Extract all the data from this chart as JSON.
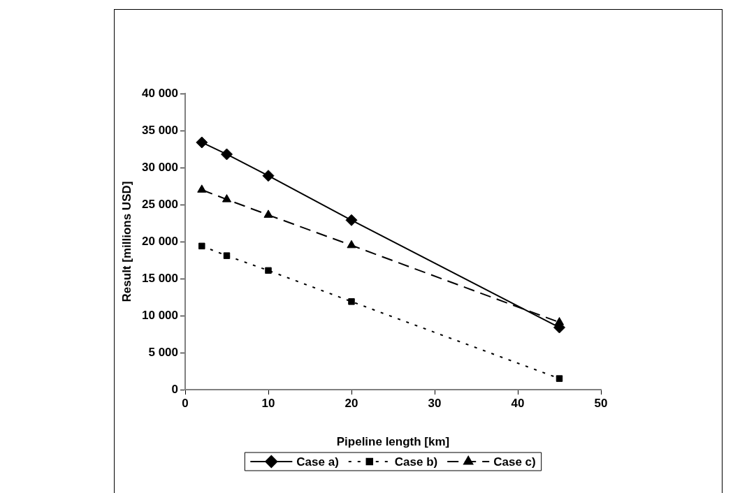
{
  "chart_data": {
    "type": "line",
    "xlabel": "Pipeline length [km]",
    "ylabel": "Result [millions USD]",
    "x": [
      2,
      5,
      10,
      20,
      45
    ],
    "series": [
      {
        "name": "Case a)",
        "color": "#000000",
        "marker": "diamond",
        "line_style": "solid",
        "values": [
          33400,
          31800,
          28900,
          22900,
          8400
        ]
      },
      {
        "name": "Case b)",
        "color": "#000000",
        "marker": "square",
        "line_style": "dotted",
        "values": [
          19400,
          18100,
          16100,
          11900,
          1500
        ]
      },
      {
        "name": "Case c)",
        "color": "#000000",
        "marker": "triangle",
        "line_style": "dashed",
        "values": [
          27000,
          25700,
          23600,
          19500,
          9100
        ]
      }
    ],
    "xlim": [
      0,
      50
    ],
    "xticks": [
      0,
      10,
      20,
      30,
      40,
      50
    ],
    "ylim": [
      0,
      40000
    ],
    "yticks": [
      0,
      {
        "value": 5000,
        "label": "5 000"
      },
      {
        "value": 10000,
        "label": "10 000"
      },
      {
        "value": 15000,
        "label": "15 000"
      },
      {
        "value": 20000,
        "label": "20 000"
      },
      {
        "value": 25000,
        "label": "25 000"
      },
      {
        "value": 30000,
        "label": "30 000"
      },
      {
        "value": 35000,
        "label": "35 000"
      },
      {
        "value": 40000,
        "label": "40 000"
      }
    ],
    "grid": false,
    "legend": "bottom"
  }
}
